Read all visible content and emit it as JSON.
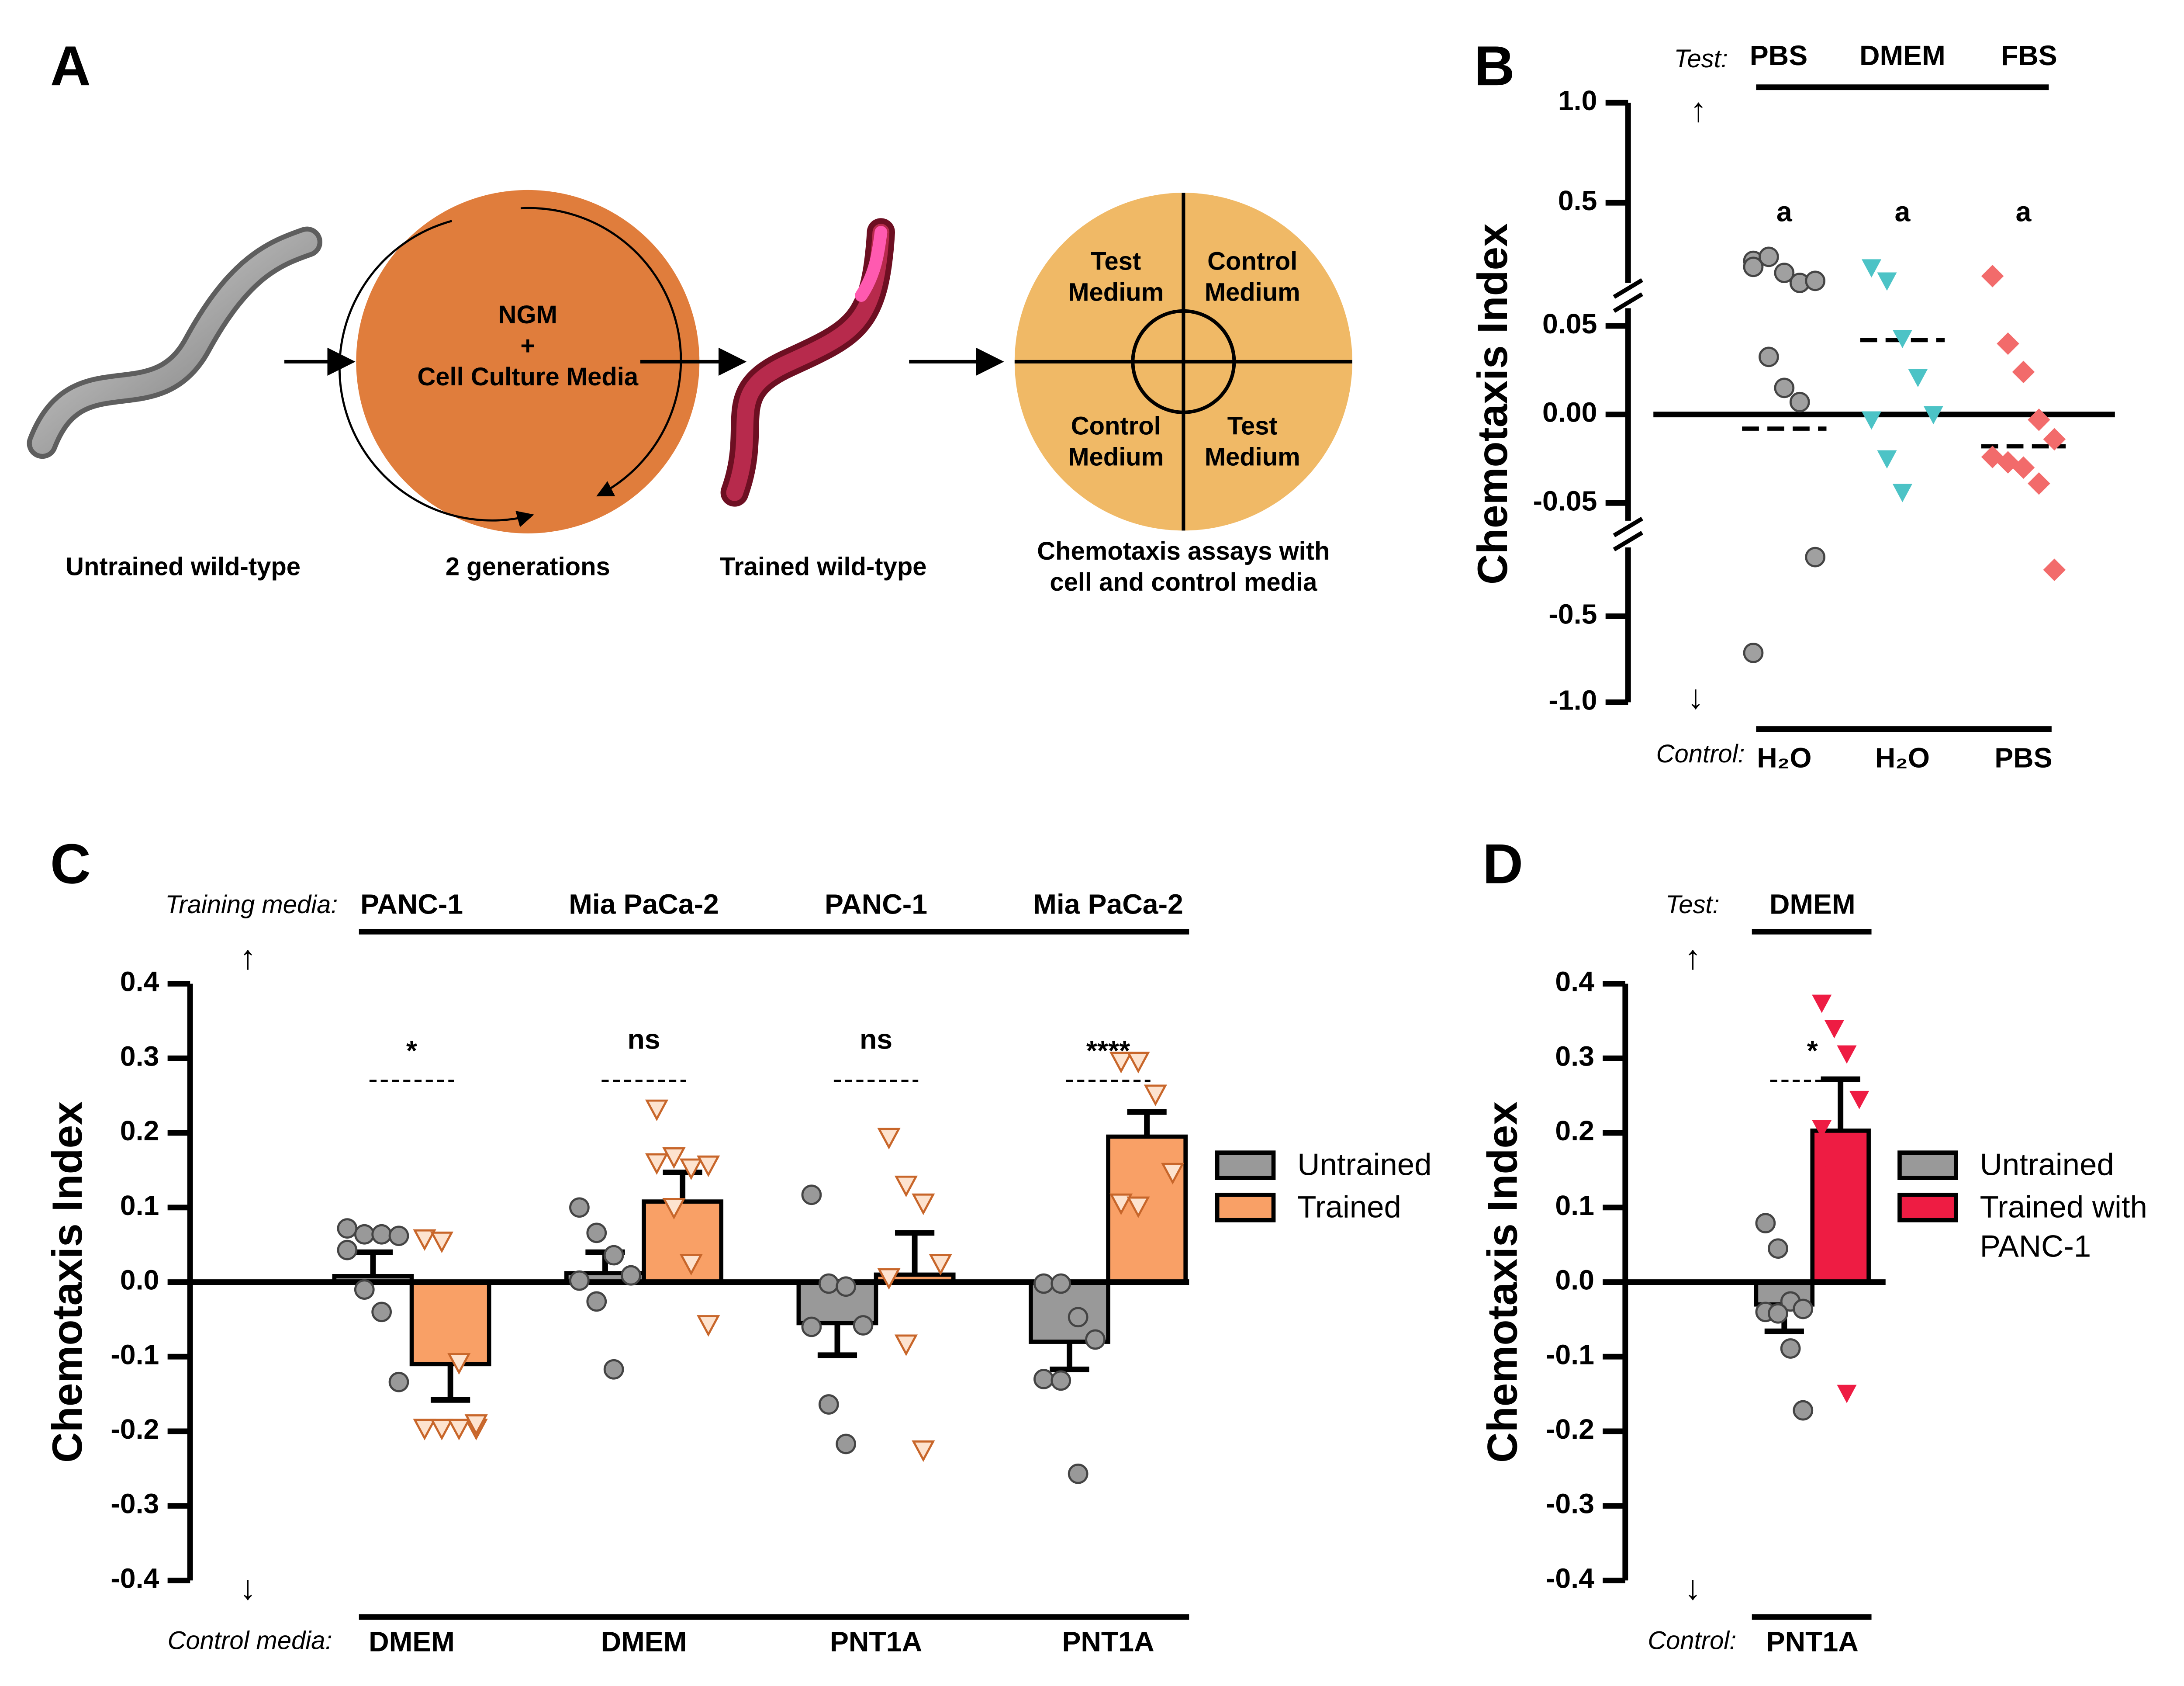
{
  "diagram": {
    "label": "A",
    "steps": [
      [
        "Untrained wild-type"
      ],
      [
        "2 generations"
      ],
      [
        "Trained wild-type"
      ],
      [
        "Chemotaxis assays with",
        "cell and control media"
      ]
    ],
    "culture_text": [
      "NGM",
      "+",
      "Cell Culture Media"
    ],
    "quadrants": [
      [
        "Test",
        "Medium"
      ],
      [
        "Control",
        "Medium"
      ],
      [
        "Control",
        "Medium"
      ],
      [
        "Test",
        "Medium"
      ]
    ]
  },
  "chart_data": [
    {
      "type": "broken_scatter",
      "label": "B",
      "ylabel": "Chemotaxis Index",
      "arrows": [
        "↑",
        "↓"
      ],
      "test_label": "Test:",
      "control_label": "Control:",
      "test_categories": [
        "PBS",
        "DMEM",
        "FBS"
      ],
      "categories": [
        "H₂O",
        "H₂O",
        "PBS"
      ],
      "annotations": [
        "a",
        "a",
        "a"
      ],
      "y_segments": [
        {
          "ylim": [
            0.1,
            1.0
          ],
          "yticks": [
            0.5,
            {
              "value": 1,
              "label": "1.0"
            }
          ]
        },
        {
          "ylim": [
            -0.06,
            0.06
          ],
          "yticks": [
            -0.05,
            {
              "value": 0,
              "label": "0.00"
            },
            0.05
          ]
        },
        {
          "ylim": [
            -1.0,
            -0.1
          ],
          "yticks": [
            {
              "value": -1,
              "label": "-1.0"
            },
            -0.5
          ]
        }
      ],
      "series": [
        {
          "color": "#a0a0a0",
          "marker": "circle",
          "values": [
            0.21,
            0.23,
            0.15,
            0.1,
            0.11,
            0.18,
            0.0325,
            0.015,
            0.007,
            -0.156,
            -0.713
          ],
          "median": -0.008
        },
        {
          "color": "#4cc3c6",
          "marker": "triangle",
          "values": [
            0.176,
            0.11,
            0.043,
            0.021,
            0.0,
            -0.003,
            -0.025,
            -0.044
          ],
          "median": 0.042
        },
        {
          "color": "#f26b6b",
          "marker": "diamond",
          "values": [
            0.134,
            0.04,
            0.024,
            -0.003,
            -0.014,
            -0.024,
            -0.027,
            -0.03,
            -0.039,
            -0.23
          ],
          "median": -0.018
        }
      ]
    },
    {
      "type": "bar_scatter",
      "label": "C",
      "ylabel": "Chemotaxis Index",
      "arrows": [
        "↑",
        "↓"
      ],
      "ylim": [
        -0.4,
        0.4
      ],
      "yticks": [
        -0.4,
        -0.3,
        -0.2,
        -0.1,
        {
          "value": 0,
          "label": "0.0"
        },
        0.1,
        0.2,
        0.3,
        0.4
      ],
      "top_label": "Training media:",
      "top_categories": [
        "PANC-1",
        "Mia PaCa-2",
        "PANC-1",
        "Mia PaCa-2"
      ],
      "bottom_label": "Control media:",
      "categories": [
        "DMEM",
        "DMEM",
        "PNT1A",
        "PNT1A"
      ],
      "significance": [
        "*",
        "ns",
        "ns",
        "****"
      ],
      "series": [
        {
          "name": "Untrained",
          "color": "#999999",
          "marker": "circle",
          "values": [
            0.008,
            0.012,
            -0.055,
            -0.08
          ],
          "errors": [
            0.032,
            0.028,
            0.043,
            0.037
          ],
          "points": [
            [
              0.072,
              0.064,
              0.064,
              0.062,
              0.043,
              -0.01,
              -0.04,
              -0.134
            ],
            [
              0.1,
              0.066,
              0.036,
              0.009,
              0.002,
              -0.026,
              -0.117
            ],
            [
              0.117,
              -0.002,
              -0.006,
              -0.058,
              -0.06,
              -0.164,
              -0.217
            ],
            [
              -0.002,
              -0.002,
              -0.047,
              -0.077,
              -0.13,
              -0.132,
              -0.257
            ]
          ]
        },
        {
          "name": "Trained",
          "color": "#f9a066",
          "marker": "triangle-open",
          "values": [
            -0.11,
            0.108,
            0.01,
            0.195
          ],
          "errors": [
            0.048,
            0.039,
            0.056,
            0.033
          ],
          "points": [
            [
              0.058,
              0.055,
              -0.108,
              -0.196,
              -0.196,
              -0.196,
              -0.196,
              -0.19
            ],
            [
              0.232,
              0.168,
              0.153,
              0.157,
              0.16,
              0.1,
              0.025,
              -0.057
            ],
            [
              0.194,
              0.13,
              0.106,
              0.025,
              0.006,
              -0.083,
              -0.225
            ],
            [
              0.296,
              0.296,
              0.252,
              0.147,
              0.106,
              0.102
            ]
          ]
        }
      ]
    },
    {
      "type": "bar_scatter",
      "label": "D",
      "ylabel": "Chemotaxis Index",
      "arrows": [
        "↑",
        "↓"
      ],
      "ylim": [
        -0.4,
        0.4
      ],
      "yticks": [
        -0.4,
        -0.3,
        -0.2,
        -0.1,
        {
          "value": 0,
          "label": "0.0"
        },
        0.1,
        0.2,
        0.3,
        0.4
      ],
      "top_label": "Test:",
      "top_categories": [
        "DMEM"
      ],
      "bottom_label": "Control:",
      "categories": [
        "PNT1A"
      ],
      "significance": [
        "*"
      ],
      "series": [
        {
          "name": "Untrained",
          "color": "#999999",
          "marker": "circle",
          "values": [
            -0.03
          ],
          "errors": [
            0.036
          ],
          "points": [
            [
              0.079,
              0.045,
              -0.026,
              -0.036,
              -0.04,
              -0.042,
              -0.089,
              -0.172
            ]
          ]
        },
        {
          "name": "Trained with PANC-1",
          "color": "#ee1c43",
          "marker": "triangle",
          "values": [
            0.203
          ],
          "errors": [
            0.069
          ],
          "points": [
            [
              0.374,
              0.34,
              0.306,
              0.245,
              0.206,
              0.147,
              -0.149
            ]
          ]
        }
      ]
    }
  ]
}
